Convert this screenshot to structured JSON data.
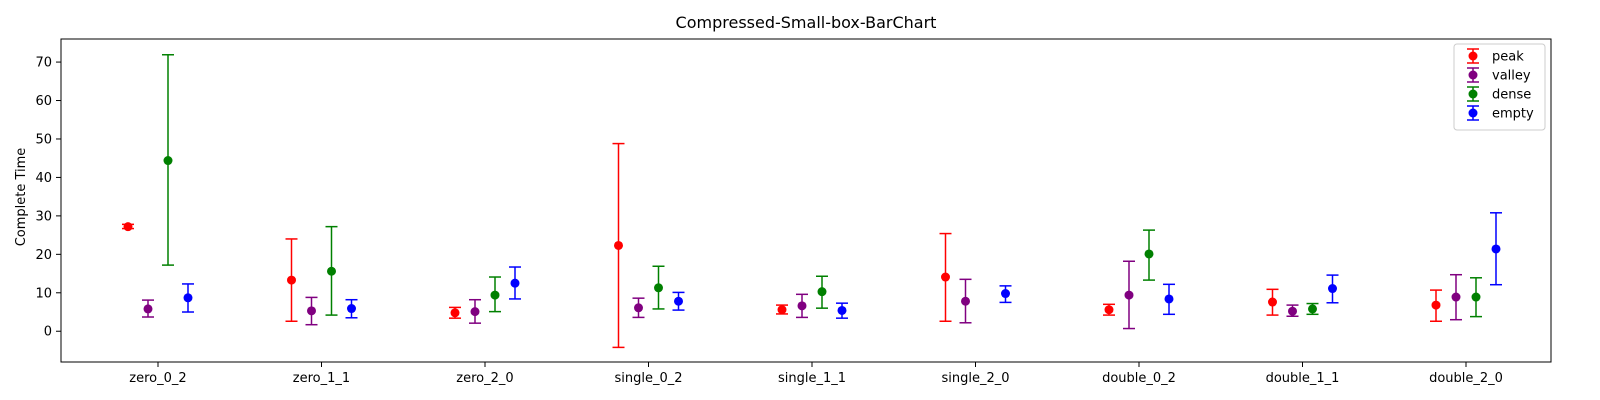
{
  "chart_data": {
    "type": "errorbar",
    "title": "Compressed-Small-box-BarChart",
    "xlabel": "",
    "ylabel": "Complete Time",
    "ylim": [
      -8,
      76
    ],
    "yticks": [
      0,
      10,
      20,
      30,
      40,
      50,
      60,
      70
    ],
    "grid": false,
    "legend_position": "top-right",
    "categories": [
      "zero_0_2",
      "zero_1_1",
      "zero_2_0",
      "single_0_2",
      "single_1_1",
      "single_2_0",
      "double_0_2",
      "double_1_1",
      "double_2_0"
    ],
    "series": [
      {
        "name": "peak",
        "color": "#ff0000",
        "mean": [
          27.2,
          13.3,
          4.8,
          22.3,
          5.6,
          14.1,
          5.6,
          7.6,
          6.8
        ],
        "lower": [
          26.7,
          2.6,
          3.4,
          -4.2,
          4.5,
          2.6,
          4.2,
          4.2,
          2.6
        ],
        "upper": [
          27.8,
          24.0,
          6.2,
          48.8,
          6.8,
          25.4,
          7.0,
          10.9,
          10.7
        ]
      },
      {
        "name": "valley",
        "color": "#800080",
        "mean": [
          5.8,
          5.3,
          5.1,
          6.1,
          6.6,
          7.8,
          9.4,
          5.2,
          8.9
        ],
        "lower": [
          3.7,
          1.7,
          2.1,
          3.6,
          3.6,
          2.2,
          0.7,
          3.9,
          3.0
        ],
        "upper": [
          8.1,
          8.8,
          8.2,
          8.6,
          9.6,
          13.5,
          18.2,
          6.8,
          14.7
        ]
      },
      {
        "name": "dense",
        "color": "#008000",
        "mean": [
          44.4,
          15.6,
          9.4,
          11.3,
          10.3,
          null,
          20.1,
          5.8,
          8.9
        ],
        "lower": [
          17.2,
          4.2,
          5.1,
          5.8,
          6.0,
          null,
          13.3,
          4.4,
          3.8
        ],
        "upper": [
          71.9,
          27.2,
          14.1,
          16.9,
          14.3,
          null,
          26.3,
          7.2,
          13.9
        ]
      },
      {
        "name": "empty",
        "color": "#0000ff",
        "mean": [
          8.7,
          5.9,
          12.5,
          7.8,
          5.4,
          9.8,
          8.4,
          11.1,
          21.4
        ],
        "lower": [
          5.0,
          3.5,
          8.4,
          5.5,
          3.4,
          7.5,
          4.4,
          7.4,
          12.1
        ],
        "upper": [
          12.3,
          8.2,
          16.7,
          10.1,
          7.3,
          11.8,
          12.2,
          14.6,
          30.8
        ]
      }
    ]
  }
}
